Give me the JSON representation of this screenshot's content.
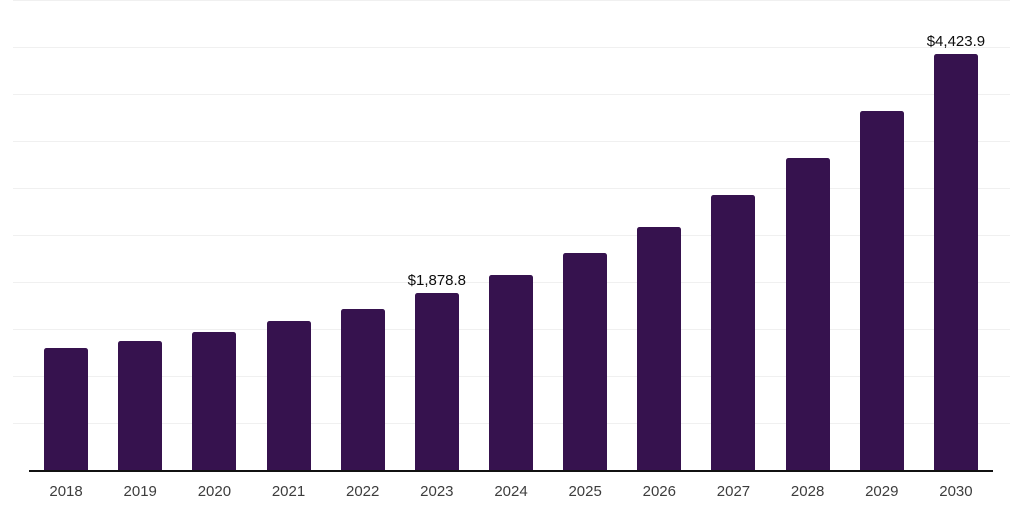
{
  "chart_data": {
    "type": "bar",
    "title": "",
    "xlabel": "",
    "ylabel": "",
    "categories": [
      "2018",
      "2019",
      "2020",
      "2021",
      "2022",
      "2023",
      "2024",
      "2025",
      "2026",
      "2027",
      "2028",
      "2029",
      "2030"
    ],
    "values": [
      1295,
      1370,
      1468,
      1582,
      1713,
      1878.8,
      2074,
      2305,
      2582,
      2929,
      3322,
      3819,
      4423.9
    ],
    "data_labels": [
      {
        "category": "2023",
        "text": "$1,878.8"
      },
      {
        "category": "2030",
        "text": "$4,423.9"
      }
    ],
    "ylim": [
      0,
      5000
    ],
    "gridline_step": 500,
    "grid": "horizontal-only",
    "legend": "none",
    "y_tick_labels_visible": false,
    "colors": {
      "bar": "#36124E",
      "axis_line": "#111111",
      "gridline": "#f0f0f0",
      "tick_label": "#3d3d3d",
      "data_label": "#0d0d0d",
      "background": "#ffffff"
    }
  }
}
